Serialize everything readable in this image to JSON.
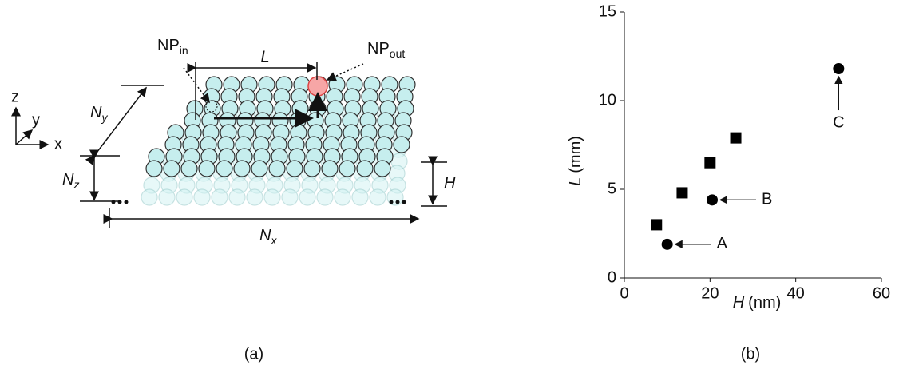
{
  "panel_a": {
    "np_in": {
      "base": "NP",
      "sub": "in"
    },
    "np_out": {
      "base": "NP",
      "sub": "out"
    },
    "length": "L",
    "ny": {
      "base": "N",
      "sub": "y"
    },
    "nz": {
      "base": "N",
      "sub": "z"
    },
    "nx": {
      "base": "N",
      "sub": "x"
    },
    "height": "H",
    "axes": {
      "z": "z",
      "y": "y",
      "x": "x"
    },
    "caption": "(a)"
  },
  "chart_data": {
    "type": "scatter",
    "caption": "(b)",
    "xlabel": {
      "var": "H",
      "unit": "(nm)"
    },
    "ylabel": {
      "var": "L",
      "unit": "(mm)"
    },
    "xlim": [
      0,
      60
    ],
    "ylim": [
      0,
      15
    ],
    "xticks": [
      0,
      20,
      40,
      60
    ],
    "yticks": [
      0,
      5,
      10,
      15
    ],
    "series": [
      {
        "marker": "square",
        "color": "#000000",
        "x": [
          7.5,
          13.5,
          20,
          26
        ],
        "values": [
          3.0,
          4.8,
          6.5,
          7.9
        ]
      },
      {
        "marker": "circle",
        "color": "#000000",
        "x": [
          10,
          20.5,
          50
        ],
        "values": [
          1.9,
          4.4,
          11.8
        ]
      }
    ],
    "annotations": [
      "A",
      "B",
      "C"
    ]
  }
}
